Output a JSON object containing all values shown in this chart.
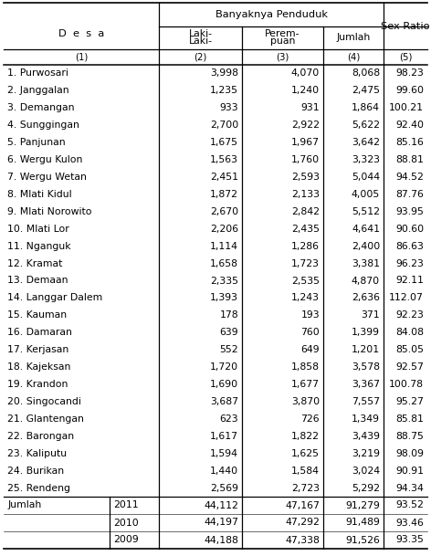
{
  "title": "Banyaknya Penduduk",
  "rows": [
    [
      "1. Purwosari",
      "3,998",
      "4,070",
      "8,068",
      "98.23"
    ],
    [
      "2. Janggalan",
      "1,235",
      "1,240",
      "2,475",
      "99.60"
    ],
    [
      "3. Demangan",
      "933",
      "931",
      "1,864",
      "100.21"
    ],
    [
      "4. Sunggingan",
      "2,700",
      "2,922",
      "5,622",
      "92.40"
    ],
    [
      "5. Panjunan",
      "1,675",
      "1,967",
      "3,642",
      "85.16"
    ],
    [
      "6. Wergu Kulon",
      "1,563",
      "1,760",
      "3,323",
      "88.81"
    ],
    [
      "7. Wergu Wetan",
      "2,451",
      "2,593",
      "5,044",
      "94.52"
    ],
    [
      "8. Mlati Kidul",
      "1,872",
      "2,133",
      "4,005",
      "87.76"
    ],
    [
      "9. Mlati Norowito",
      "2,670",
      "2,842",
      "5,512",
      "93.95"
    ],
    [
      "10. Mlati Lor",
      "2,206",
      "2,435",
      "4,641",
      "90.60"
    ],
    [
      "11. Nganguk",
      "1,114",
      "1,286",
      "2,400",
      "86.63"
    ],
    [
      "12. Kramat",
      "1,658",
      "1,723",
      "3,381",
      "96.23"
    ],
    [
      "13. Demaan",
      "2,335",
      "2,535",
      "4,870",
      "92.11"
    ],
    [
      "14. Langgar Dalem",
      "1,393",
      "1,243",
      "2,636",
      "112.07"
    ],
    [
      "15. Kauman",
      "178",
      "193",
      "371",
      "92.23"
    ],
    [
      "16. Damaran",
      "639",
      "760",
      "1,399",
      "84.08"
    ],
    [
      "17. Kerjasan",
      "552",
      "649",
      "1,201",
      "85.05"
    ],
    [
      "18. Kajeksan",
      "1,720",
      "1,858",
      "3,578",
      "92.57"
    ],
    [
      "19. Krandon",
      "1,690",
      "1,677",
      "3,367",
      "100.78"
    ],
    [
      "20. Singocandi",
      "3,687",
      "3,870",
      "7,557",
      "95.27"
    ],
    [
      "21. Glantengan",
      "623",
      "726",
      "1,349",
      "85.81"
    ],
    [
      "22. Barongan",
      "1,617",
      "1,822",
      "3,439",
      "88.75"
    ],
    [
      "23. Kaliputu",
      "1,594",
      "1,625",
      "3,219",
      "98.09"
    ],
    [
      "24. Burikan",
      "1,440",
      "1,584",
      "3,024",
      "90.91"
    ],
    [
      "25. Rendeng",
      "2,569",
      "2,723",
      "5,292",
      "94.34"
    ]
  ],
  "totals": [
    [
      "Jumlah",
      "2011",
      "44,112",
      "47,167",
      "91,279",
      "93.52"
    ],
    [
      "",
      "2010",
      "44,197",
      "47,292",
      "91,489",
      "93.46"
    ],
    [
      "",
      "2009",
      "44,188",
      "47,338",
      "91,526",
      "93.35"
    ]
  ],
  "bg_color": "#ffffff",
  "text_color": "#000000",
  "line_color": "#000000",
  "fs": 7.8,
  "hfs": 8.2
}
